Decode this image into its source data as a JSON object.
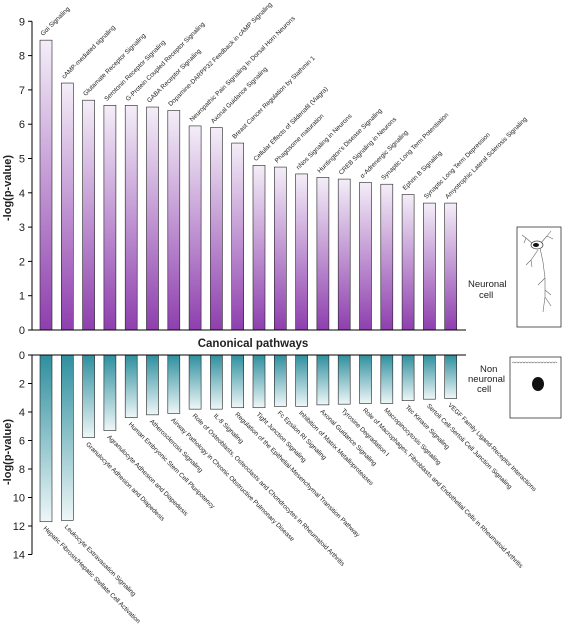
{
  "shared": {
    "xlabel": "Canonical pathways",
    "ylabel": "-log(p-value)"
  },
  "chart_data": [
    {
      "type": "bar",
      "name": "Neuronal cell",
      "xlabel": "Canonical pathways",
      "ylabel": "-log(p-value)",
      "ylim": [
        0,
        9
      ],
      "yticks": [
        0,
        1,
        2,
        3,
        4,
        5,
        6,
        7,
        8,
        9
      ],
      "orientation": "upward",
      "colors": {
        "top": "#f4eef8",
        "bottom": "#8e3fae"
      },
      "categories": [
        "Gαi Signaling",
        "cAMP-mediated signaling",
        "Glutamate Receptor Signaling",
        "Serotonin Receptor Signaling",
        "G-Protein Coupled Receptor Signaling",
        "GABA Receptor Signaling",
        "Dopamine-DARPP32 Feedback in cAMP Signaling",
        "Neuropathic Pain Signaling In Dorsal Horn Neurons",
        "Axonal Guidance Signaling",
        "Breast Cancer Regulation by Stathmin 1",
        "Cellular Effects of Sildenafil (Viagra)",
        "Phagosome maturation",
        "nNos Signaling in Neurons",
        "Huntington's Disease Signaling",
        "CREB Signaling in Neurons",
        "α-Adrenergic Signaling",
        "Synaptic Long Term Potentiation",
        "Ephrin B Signaling",
        "Synaptic Long Term Depression",
        "Amyotrophic Lateral Sclerosis Signaling"
      ],
      "values": [
        8.45,
        7.2,
        6.7,
        6.55,
        6.55,
        6.5,
        6.4,
        5.95,
        5.9,
        5.45,
        4.8,
        4.75,
        4.55,
        4.45,
        4.4,
        4.3,
        4.25,
        3.95,
        3.7,
        3.7
      ]
    },
    {
      "type": "bar",
      "name": "Non neuronal cell",
      "xlabel": "Canonical pathways",
      "ylabel": "-log(p-value)",
      "ylim": [
        0,
        14
      ],
      "yticks": [
        0,
        2,
        4,
        6,
        8,
        10,
        12,
        14
      ],
      "orientation": "downward",
      "colors": {
        "top": "#2e8f9e",
        "bottom": "#eef7f8"
      },
      "categories": [
        "Hepatic Fibrosis/Hepatic Stellate Cell Activation",
        "Leukocyte Extravasation Signaling",
        "Granulocyte Adhesion and Diapedesis",
        "Agranulocyte Adhesion and Diapedesis",
        "Human Embryonic Stem Cell Pluripotency",
        "Atherosclerosis Signaling",
        "Airway Pathology in Chronic Obstructive Pulmonary Disease",
        "Role of Osteoblasts, Osteoclasts and Chondrocytes in Rheumatoid Arthritis",
        "IL-8 Signaling",
        "Regulation of the Epithelial-Mesenchymal Transition Pathway",
        "Tight Junction Signaling",
        "Fc Epsilon RI Signaling",
        "Inhibition of Matrix Metalloproteases",
        "Axonal Guidance Signaling",
        "Tyrosine Degradation I",
        "Role of Macrophages, Fibroblasts and Endothelial Cells in Rheumatoid Arthritis",
        "Macropinocytosis Signaling",
        "Tec Kinase Signaling",
        "Sertoli Cell-Sertoli Cell Junction Signaling",
        "VEGF Family Ligand-Receptor Interactions"
      ],
      "values": [
        11.7,
        11.6,
        5.8,
        5.3,
        4.4,
        4.2,
        4.1,
        3.8,
        3.8,
        3.7,
        3.7,
        3.6,
        3.6,
        3.5,
        3.45,
        3.4,
        3.4,
        3.2,
        3.1,
        3.05
      ]
    }
  ],
  "legend": {
    "neuronal_label": [
      "Neuronal",
      "cell"
    ],
    "non_neuronal_label": [
      "Non",
      "neuronal",
      "cell"
    ],
    "neuronal_icon": "neuron-icon",
    "non_neuronal_icon": "cell-icon"
  }
}
